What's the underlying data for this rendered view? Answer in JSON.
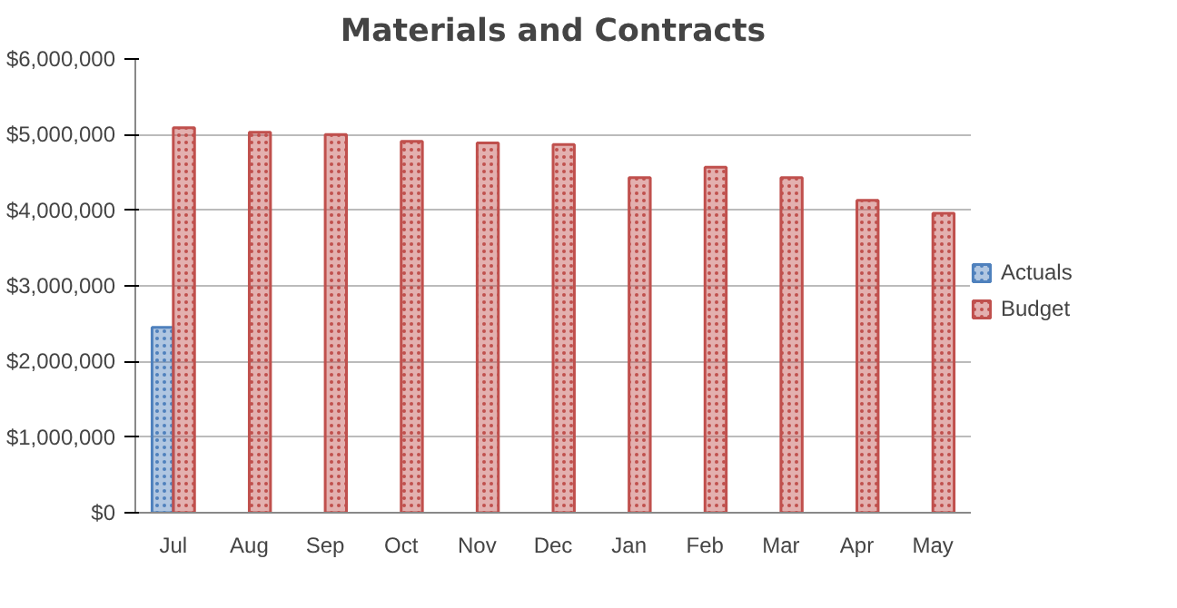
{
  "chart_data": {
    "type": "bar",
    "title": "Materials and Contracts",
    "categories": [
      "Jul",
      "Aug",
      "Sep",
      "Oct",
      "Nov",
      "Dec",
      "Jan",
      "Feb",
      "Mar",
      "Apr",
      "May"
    ],
    "series": [
      {
        "name": "Actuals",
        "color": "#4f81bd",
        "values": [
          2450000,
          null,
          null,
          null,
          null,
          null,
          null,
          null,
          null,
          null,
          null
        ]
      },
      {
        "name": "Budget",
        "color": "#c0504d",
        "values": [
          5090000,
          5030000,
          5000000,
          4910000,
          4890000,
          4870000,
          4430000,
          4570000,
          4430000,
          4130000,
          3960000
        ]
      }
    ],
    "ylim": [
      0,
      6000000
    ],
    "yticks": [
      {
        "value": 0,
        "label": "$0"
      },
      {
        "value": 1000000,
        "label": "$1,000,000"
      },
      {
        "value": 2000000,
        "label": "$2,000,000"
      },
      {
        "value": 3000000,
        "label": "$3,000,000"
      },
      {
        "value": 4000000,
        "label": "$4,000,000"
      },
      {
        "value": 5000000,
        "label": "$5,000,000"
      },
      {
        "value": 6000000,
        "label": "$6,000,000"
      }
    ],
    "grid": "y",
    "legend": "right"
  }
}
